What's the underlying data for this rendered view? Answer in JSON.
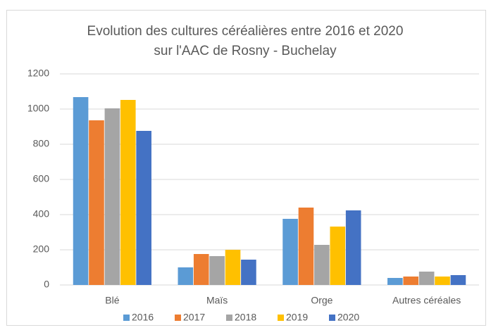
{
  "chart_data": {
    "type": "bar",
    "title": [
      "Evolution des cultures céréalières entre 2016 et 2020",
      "sur l'AAC de Rosny - Buchelay"
    ],
    "categories": [
      "Blé",
      "Maïs",
      "Orge",
      "Autres céréales"
    ],
    "series": [
      {
        "name": "2016",
        "color": "#5b9bd5",
        "values": [
          1068,
          100,
          376,
          40
        ]
      },
      {
        "name": "2017",
        "color": "#ed7d31",
        "values": [
          936,
          176,
          440,
          48
        ]
      },
      {
        "name": "2018",
        "color": "#a5a5a5",
        "values": [
          1004,
          164,
          228,
          76
        ]
      },
      {
        "name": "2019",
        "color": "#ffc000",
        "values": [
          1052,
          200,
          332,
          48
        ]
      },
      {
        "name": "2020",
        "color": "#4472c4",
        "values": [
          876,
          144,
          424,
          56
        ]
      }
    ],
    "ylim": [
      0,
      1200
    ],
    "yticks": [
      0,
      200,
      400,
      600,
      800,
      1000,
      1200
    ],
    "grid": true,
    "legend": "bottom"
  }
}
